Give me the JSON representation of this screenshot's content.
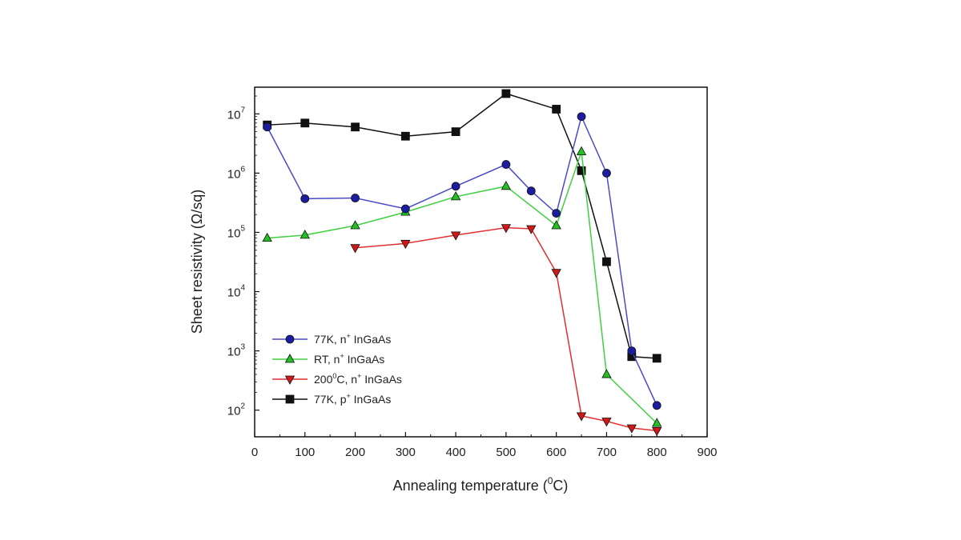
{
  "chart_data": {
    "type": "line",
    "title": "",
    "xlabel": "Annealing temperature (°C)",
    "ylabel": "Sheet resistivity (Ω/sq)",
    "xlim": [
      0,
      900
    ],
    "ylim_log10": [
      1.55,
      7.45
    ],
    "yscale": "log",
    "grid": false,
    "legend_position": "bottom-left",
    "x_ticks": [
      {
        "value": 0,
        "label": "0"
      },
      {
        "value": 100,
        "label": "100"
      },
      {
        "value": 200,
        "label": "200"
      },
      {
        "value": 300,
        "label": "300"
      },
      {
        "value": 400,
        "label": "400"
      },
      {
        "value": 500,
        "label": "500"
      },
      {
        "value": 600,
        "label": "600"
      },
      {
        "value": 700,
        "label": "700"
      },
      {
        "value": 800,
        "label": "800"
      },
      {
        "value": 900,
        "label": "900"
      }
    ],
    "y_ticks": [
      {
        "exp": 2,
        "base": "10",
        "sup": "2"
      },
      {
        "exp": 3,
        "base": "10",
        "sup": "3"
      },
      {
        "exp": 4,
        "base": "10",
        "sup": "4"
      },
      {
        "exp": 5,
        "base": "10",
        "sup": "5"
      },
      {
        "exp": 6,
        "base": "10",
        "sup": "6"
      },
      {
        "exp": 7,
        "base": "10",
        "sup": "7"
      }
    ],
    "series": [
      {
        "name": "77K, n⁺ InGaAs",
        "color": "#1c1ca0",
        "line_color": "#4a4ac8",
        "marker": "circle",
        "x": [
          25,
          100,
          200,
          300,
          400,
          500,
          550,
          600,
          650,
          700,
          750,
          800
        ],
        "y": [
          6000000,
          370000,
          380000,
          250000,
          600000,
          1400000,
          500000,
          210000,
          9000000,
          1000000,
          1000,
          120
        ]
      },
      {
        "name": "RT, n⁺ InGaAs",
        "color": "#22c022",
        "line_color": "#40d040",
        "marker": "triangle-up",
        "x": [
          25,
          100,
          200,
          300,
          400,
          500,
          600,
          650,
          700,
          800
        ],
        "y": [
          80000,
          90000,
          130000,
          220000,
          400000,
          600000,
          130000,
          2300000,
          400,
          60
        ]
      },
      {
        "name": "200°C, n⁺ InGaAs",
        "color": "#d01818",
        "line_color": "#e03030",
        "marker": "triangle-down",
        "x": [
          200,
          300,
          400,
          500,
          550,
          600,
          650,
          700,
          750,
          800
        ],
        "y": [
          55000,
          65000,
          90000,
          120000,
          115000,
          21000,
          80,
          65,
          50,
          45
        ]
      },
      {
        "name": "77K, p⁺ InGaAs",
        "color": "#111111",
        "line_color": "#111111",
        "marker": "square",
        "x": [
          25,
          100,
          200,
          300,
          400,
          500,
          600,
          650,
          700,
          750,
          800
        ],
        "y": [
          6500000,
          7000000,
          6000000,
          4200000,
          5000000,
          22000000,
          12000000,
          1100000,
          32000,
          800,
          750
        ]
      }
    ],
    "legend": [
      {
        "prefix": "77K, n",
        "sup": "+",
        "suffix": " InGaAs"
      },
      {
        "prefix": "RT, n",
        "sup": "+",
        "suffix": " InGaAs"
      },
      {
        "prefix": "200",
        "sup0": "0",
        "mid": "C, n",
        "sup": "+",
        "suffix": " InGaAs"
      },
      {
        "prefix": "77K, p",
        "sup": "+",
        "suffix": " InGaAs"
      }
    ],
    "axis_text": {
      "xlabel_pre": "Annealing temperature (",
      "xlabel_sup": "0",
      "xlabel_post": "C)",
      "ylabel": "Sheet resistivity (Ω/sq)"
    }
  }
}
